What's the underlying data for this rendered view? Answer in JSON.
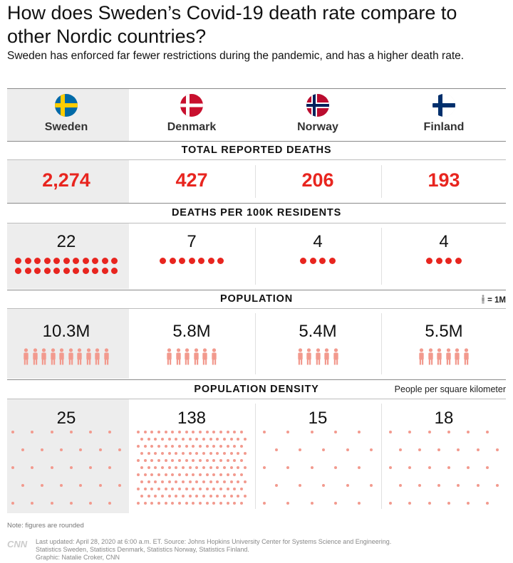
{
  "title": "How does Sweden’s Covid-19 death rate compare to other Nordic countries?",
  "subtitle": "Sweden has enforced far fewer restrictions during the pandemic, and has a higher death rate.",
  "countries": [
    {
      "name": "Sweden",
      "flag": "sweden-flag-icon",
      "total_deaths": "2,274",
      "deaths_per_100k": "22",
      "deaths_per_100k_value": 22,
      "population": "10.3M",
      "population_value": 10.3,
      "density": "25",
      "density_value": 25
    },
    {
      "name": "Denmark",
      "flag": "denmark-flag-icon",
      "total_deaths": "427",
      "deaths_per_100k": "7",
      "deaths_per_100k_value": 7,
      "population": "5.8M",
      "population_value": 5.8,
      "density": "138",
      "density_value": 138
    },
    {
      "name": "Norway",
      "flag": "norway-flag-icon",
      "total_deaths": "206",
      "deaths_per_100k": "4",
      "deaths_per_100k_value": 4,
      "population": "5.4M",
      "population_value": 5.4,
      "density": "15",
      "density_value": 15
    },
    {
      "name": "Finland",
      "flag": "finland-flag-icon",
      "total_deaths": "193",
      "deaths_per_100k": "4",
      "deaths_per_100k_value": 4,
      "population": "5.5M",
      "population_value": 5.5,
      "density": "18",
      "density_value": 18
    }
  ],
  "sections": {
    "total_deaths": "TOTAL REPORTED DEATHS",
    "deaths_per_100k": "DEATHS PER 100K RESIDENTS",
    "population": "POPULATION",
    "density": "POPULATION DENSITY"
  },
  "population_legend": "= 1M",
  "density_legend": "People per square kilometer",
  "note": "Note: figures are rounded",
  "credits": {
    "line1": "Last updated: April 28, 2020 at 6:00 a.m. ET. Source: Johns Hopkins University Center for Systems Science and Engineering.",
    "line2": "Statistics Sweden, Statistics Denmark, Statistics Norway, Statistics Finland.",
    "line3": "Graphic: Natalie Croker, CNN"
  },
  "logo": "CNN",
  "colors": {
    "accent_red": "#e8251f",
    "person_pink": "#f29a8e",
    "highlight_grey": "#ededed"
  }
}
